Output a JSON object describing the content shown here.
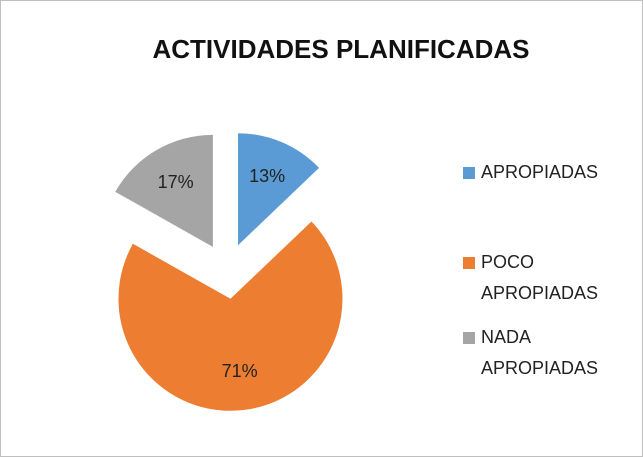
{
  "chart_data": {
    "type": "pie",
    "title": "ACTIVIDADES PLANIFICADAS",
    "categories": [
      "APROPIADAS",
      "POCO APROPIADAS",
      "NADA APROPIADAS"
    ],
    "values": [
      13,
      71,
      17
    ],
    "value_labels": [
      "13%",
      "71%",
      "17%"
    ],
    "colors": [
      "#5b9bd5",
      "#ed7d31",
      "#a5a5a5"
    ],
    "legend": "right",
    "exploded": true
  }
}
